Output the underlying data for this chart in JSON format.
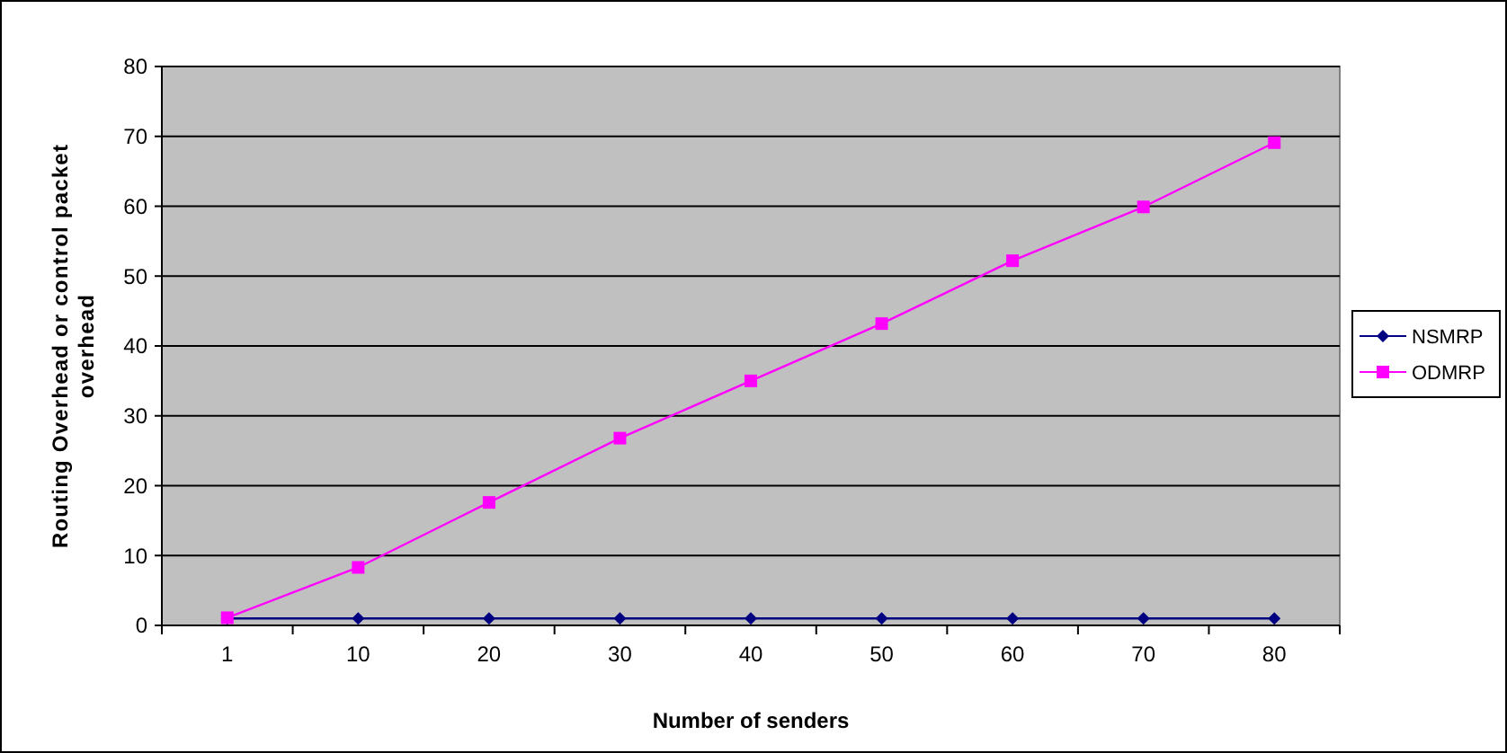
{
  "chart_data": {
    "type": "line",
    "xlabel": "Number of senders",
    "ylabel": "Routing Overhead or control packet overhead",
    "categories": [
      "1",
      "10",
      "20",
      "30",
      "40",
      "50",
      "60",
      "70",
      "80"
    ],
    "series": [
      {
        "name": "NSMRP",
        "color": "#000080",
        "marker": "diamond",
        "values": [
          1,
          1,
          1,
          1,
          1,
          1,
          1,
          1,
          1
        ]
      },
      {
        "name": "ODMRP",
        "color": "#ff00ff",
        "marker": "square",
        "values": [
          1.1,
          8.3,
          17.6,
          26.8,
          35,
          43.2,
          52.2,
          59.9,
          69.1
        ]
      }
    ],
    "ylim": [
      0,
      80
    ],
    "yticks": [
      0,
      10,
      20,
      30,
      40,
      50,
      60,
      70,
      80
    ],
    "grid": "y",
    "legend": "right"
  }
}
